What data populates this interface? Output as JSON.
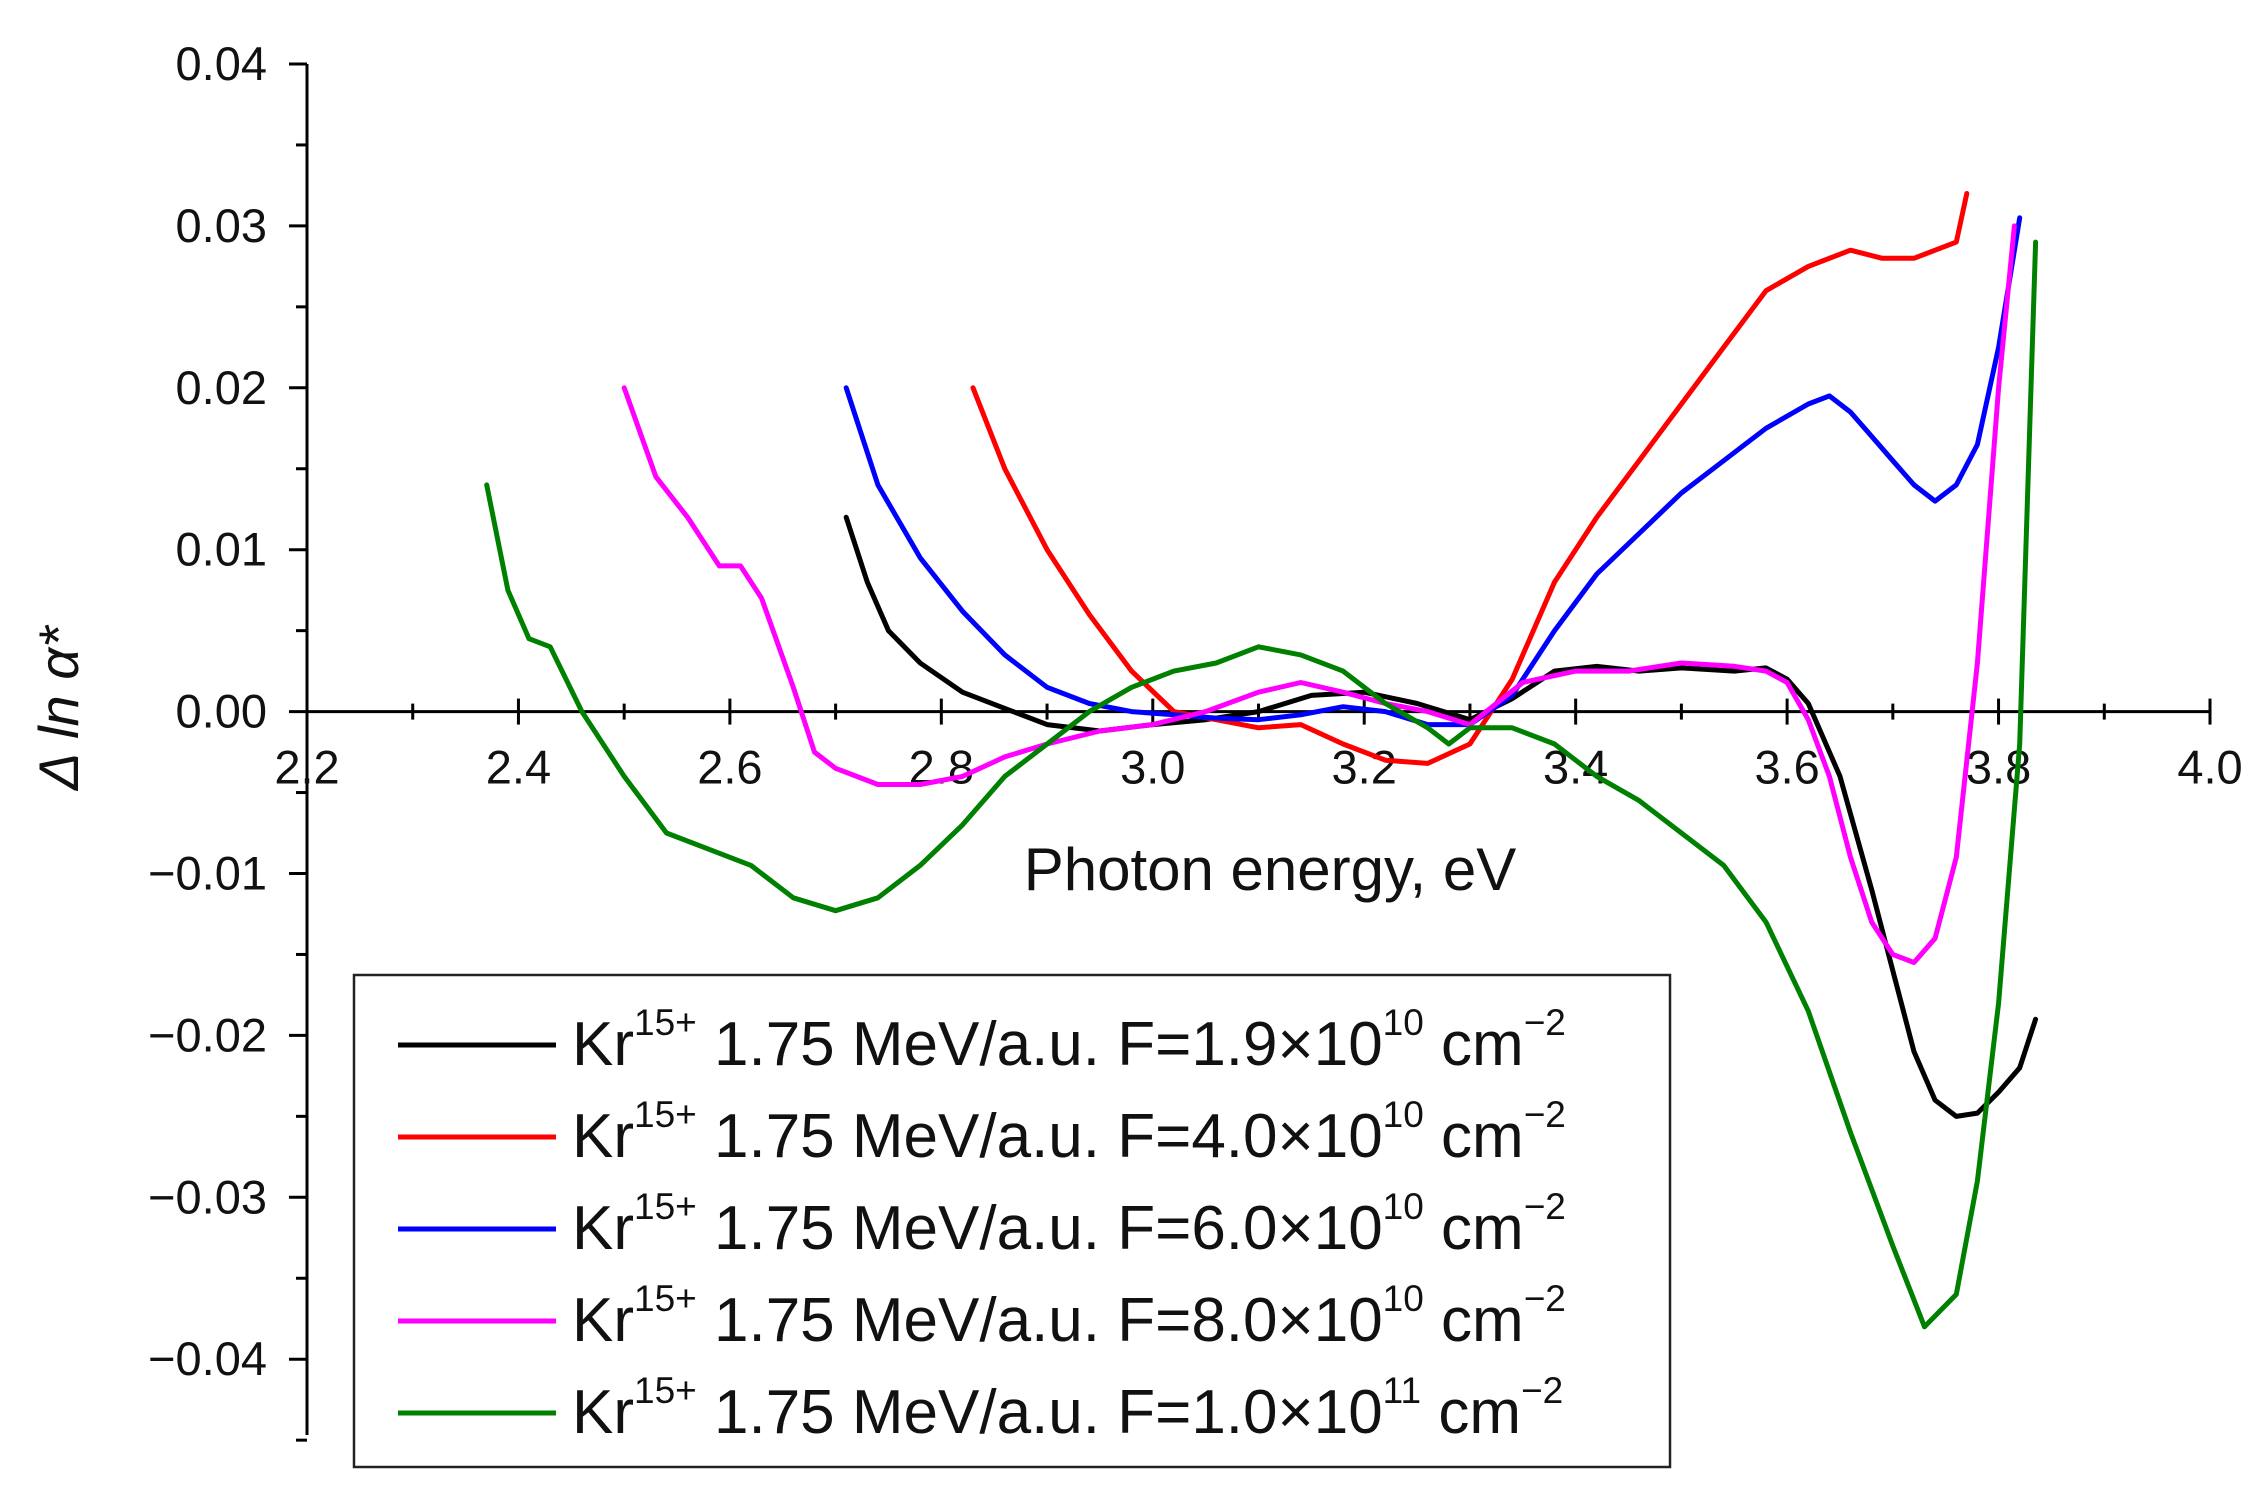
{
  "chart_data": {
    "type": "line",
    "xlabel": "Photon energy, eV",
    "ylabel": "Δ ln α*",
    "xlim": [
      2.2,
      4.0
    ],
    "ylim": [
      -0.045,
      0.04
    ],
    "xticks": [
      2.2,
      2.4,
      2.6,
      2.8,
      3.0,
      3.2,
      3.4,
      3.6,
      3.8,
      4.0
    ],
    "xtick_labels": [
      "2.2",
      "2.4",
      "2.6",
      "2.8",
      "3.0",
      "3.2",
      "3.4",
      "3.6",
      "3.8",
      "4.0"
    ],
    "yticks": [
      0.04,
      0.03,
      0.02,
      0.01,
      0.0,
      -0.01,
      -0.02,
      -0.03,
      -0.04
    ],
    "ytick_labels": [
      "0.04",
      "0.03",
      "0.02",
      "0.01",
      "0.00",
      "−0.01",
      "−0.02",
      "−0.03",
      "−0.04"
    ],
    "legend_location": "bottom-center",
    "series": [
      {
        "name": "Kr15+ 1.75 MeV/a.u. F=1.9×10^10 cm^-2",
        "ion": "Kr",
        "charge": "15+",
        "energy": "1.75 MeV/a.u.",
        "fluence_prefix": "F=1.9×10",
        "exponent": "10",
        "unit": "cm",
        "unit_exp": "−2",
        "color": "#000000",
        "x": [
          2.71,
          2.73,
          2.75,
          2.78,
          2.82,
          2.86,
          2.9,
          2.95,
          3.0,
          3.05,
          3.1,
          3.15,
          3.2,
          3.25,
          3.3,
          3.34,
          3.38,
          3.42,
          3.46,
          3.5,
          3.55,
          3.58,
          3.6,
          3.62,
          3.65,
          3.68,
          3.7,
          3.72,
          3.74,
          3.76,
          3.78,
          3.8,
          3.82,
          3.835
        ],
        "y": [
          0.012,
          0.008,
          0.005,
          0.003,
          0.0012,
          0.0002,
          -0.0008,
          -0.0012,
          -0.0008,
          -0.0005,
          0.0,
          0.001,
          0.0012,
          0.0005,
          -0.0005,
          0.0008,
          0.0025,
          0.0028,
          0.0025,
          0.0027,
          0.0025,
          0.0027,
          0.002,
          0.0005,
          -0.004,
          -0.011,
          -0.016,
          -0.021,
          -0.024,
          -0.025,
          -0.0248,
          -0.0235,
          -0.022,
          -0.019
        ]
      },
      {
        "name": "Kr15+ 1.75 MeV/a.u. F=4.0×10^10 cm^-2",
        "ion": "Kr",
        "charge": "15+",
        "energy": "1.75 MeV/a.u.",
        "fluence_prefix": "F=4.0×10",
        "exponent": "10",
        "unit": "cm",
        "unit_exp": "−2",
        "color": "#ff0000",
        "x": [
          2.83,
          2.86,
          2.9,
          2.94,
          2.98,
          3.02,
          3.06,
          3.1,
          3.14,
          3.18,
          3.22,
          3.26,
          3.3,
          3.34,
          3.38,
          3.42,
          3.46,
          3.5,
          3.54,
          3.58,
          3.62,
          3.66,
          3.69,
          3.72,
          3.74,
          3.76,
          3.77
        ],
        "y": [
          0.02,
          0.015,
          0.01,
          0.006,
          0.0025,
          0.0,
          -0.0005,
          -0.001,
          -0.0008,
          -0.002,
          -0.003,
          -0.0032,
          -0.002,
          0.002,
          0.008,
          0.012,
          0.0155,
          0.019,
          0.0225,
          0.026,
          0.0275,
          0.0285,
          0.028,
          0.028,
          0.0285,
          0.029,
          0.032
        ]
      },
      {
        "name": "Kr15+ 1.75 MeV/a.u. F=6.0×10^10 cm^-2",
        "ion": "Kr",
        "charge": "15+",
        "energy": "1.75 MeV/a.u.",
        "fluence_prefix": "F=6.0×10",
        "exponent": "10",
        "unit": "cm",
        "unit_exp": "−2",
        "color": "#0000ff",
        "x": [
          2.71,
          2.74,
          2.78,
          2.82,
          2.86,
          2.9,
          2.94,
          2.98,
          3.02,
          3.06,
          3.1,
          3.14,
          3.18,
          3.22,
          3.26,
          3.3,
          3.34,
          3.38,
          3.42,
          3.46,
          3.5,
          3.54,
          3.58,
          3.62,
          3.64,
          3.66,
          3.68,
          3.7,
          3.72,
          3.74,
          3.76,
          3.78,
          3.8,
          3.82
        ],
        "y": [
          0.02,
          0.014,
          0.0095,
          0.0062,
          0.0035,
          0.0015,
          0.0005,
          0.0,
          -0.0002,
          -0.0004,
          -0.0005,
          -0.0002,
          0.0003,
          0.0,
          -0.0008,
          -0.0008,
          0.001,
          0.005,
          0.0085,
          0.011,
          0.0135,
          0.0155,
          0.0175,
          0.019,
          0.0195,
          0.0185,
          0.017,
          0.0155,
          0.014,
          0.013,
          0.014,
          0.0165,
          0.0225,
          0.0305
        ]
      },
      {
        "name": "Kr15+ 1.75 MeV/a.u. F=8.0×10^10 cm^-2",
        "ion": "Kr",
        "charge": "15+",
        "energy": "1.75 MeV/a.u.",
        "fluence_prefix": "F=8.0×10",
        "exponent": "10",
        "unit": "cm",
        "unit_exp": "−2",
        "color": "#ff00ff",
        "x": [
          2.5,
          2.53,
          2.56,
          2.59,
          2.61,
          2.63,
          2.66,
          2.68,
          2.7,
          2.74,
          2.78,
          2.82,
          2.86,
          2.9,
          2.95,
          3.0,
          3.05,
          3.1,
          3.14,
          3.18,
          3.22,
          3.26,
          3.3,
          3.35,
          3.4,
          3.45,
          3.5,
          3.55,
          3.58,
          3.6,
          3.62,
          3.64,
          3.66,
          3.68,
          3.7,
          3.72,
          3.74,
          3.76,
          3.78,
          3.8,
          3.815
        ],
        "y": [
          0.02,
          0.0145,
          0.012,
          0.009,
          0.009,
          0.007,
          0.0015,
          -0.0025,
          -0.0035,
          -0.0045,
          -0.0045,
          -0.004,
          -0.0028,
          -0.002,
          -0.0012,
          -0.0008,
          0.0,
          0.0012,
          0.0018,
          0.0012,
          0.0005,
          0.0,
          -0.0008,
          0.0018,
          0.0025,
          0.0025,
          0.003,
          0.0028,
          0.0025,
          0.0018,
          -0.0005,
          -0.004,
          -0.009,
          -0.013,
          -0.015,
          -0.0155,
          -0.014,
          -0.009,
          0.003,
          0.02,
          0.03
        ]
      },
      {
        "name": "Kr15+ 1.75 MeV/a.u. F=1.0×10^11 cm^-2",
        "ion": "Kr",
        "charge": "15+",
        "energy": "1.75 MeV/a.u.",
        "fluence_prefix": "F=1.0×10",
        "exponent": "11",
        "unit": "cm",
        "unit_exp": "−2",
        "color": "#008000",
        "x": [
          2.37,
          2.39,
          2.41,
          2.43,
          2.46,
          2.5,
          2.54,
          2.58,
          2.62,
          2.66,
          2.7,
          2.74,
          2.78,
          2.82,
          2.86,
          2.9,
          2.94,
          2.98,
          3.02,
          3.06,
          3.1,
          3.14,
          3.18,
          3.22,
          3.26,
          3.28,
          3.3,
          3.34,
          3.38,
          3.42,
          3.46,
          3.5,
          3.54,
          3.58,
          3.62,
          3.66,
          3.7,
          3.73,
          3.76,
          3.78,
          3.8,
          3.82,
          3.835
        ],
        "y": [
          0.014,
          0.0075,
          0.0045,
          0.004,
          0.0,
          -0.004,
          -0.0075,
          -0.0085,
          -0.0095,
          -0.0115,
          -0.0123,
          -0.0115,
          -0.0095,
          -0.007,
          -0.004,
          -0.002,
          0.0,
          0.0015,
          0.0025,
          0.003,
          0.004,
          0.0035,
          0.0025,
          0.0005,
          -0.001,
          -0.002,
          -0.001,
          -0.001,
          -0.002,
          -0.004,
          -0.0055,
          -0.0075,
          -0.0095,
          -0.013,
          -0.0185,
          -0.026,
          -0.033,
          -0.038,
          -0.036,
          -0.029,
          -0.018,
          -0.002,
          0.029
        ]
      }
    ]
  }
}
